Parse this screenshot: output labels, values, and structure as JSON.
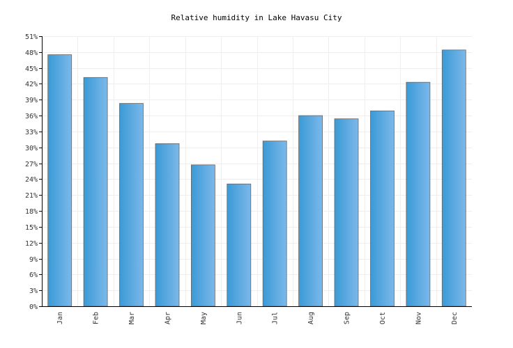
{
  "chart_data": {
    "type": "bar",
    "title": "Relative humidity in Lake Havasu City",
    "categories": [
      "Jan",
      "Feb",
      "Mar",
      "Apr",
      "May",
      "Jun",
      "Jul",
      "Aug",
      "Sep",
      "Oct",
      "Nov",
      "Dec"
    ],
    "series": [
      {
        "values": [
          47.5,
          43.2,
          38.3,
          30.7,
          26.7,
          23.1,
          31.2,
          36.0,
          35.4,
          36.9,
          42.3,
          48.4
        ]
      }
    ],
    "ylim": [
      0,
      51
    ],
    "yticks": [
      "0%",
      "3%",
      "6%",
      "9%",
      "12%",
      "15%",
      "18%",
      "21%",
      "24%",
      "27%",
      "30%",
      "33%",
      "36%",
      "39%",
      "42%",
      "45%",
      "48%",
      "51%"
    ],
    "grid": true,
    "legend": "none",
    "colors": {
      "bar_light": "#7cb8ea",
      "bar_dark": "#3a9ad6",
      "bar_border": "#666666",
      "grid": "#eeeeee",
      "axis": "#000000"
    }
  }
}
